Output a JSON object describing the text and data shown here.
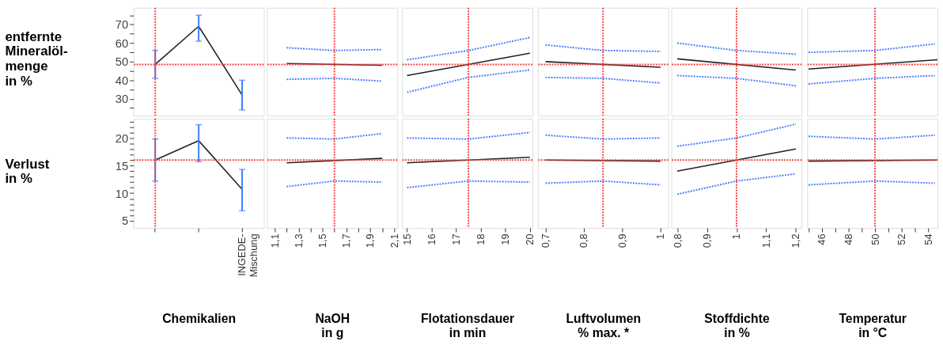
{
  "chart_data": [
    {
      "type": "line",
      "categories": [
        null,
        null,
        null
      ],
      "ylabel": "entfernte\nMineralöl-\nmenge\nin %",
      "ylim": [
        21,
        79
      ],
      "yticks": [
        {
          "value": 25,
          "label": null
        },
        30,
        {
          "value": 35,
          "label": null
        },
        40,
        {
          "value": 45,
          "label": null
        },
        50,
        {
          "value": 55,
          "label": null
        },
        60,
        {
          "value": 65,
          "label": null
        },
        70,
        {
          "value": 75,
          "label": null
        }
      ],
      "tick_labels": "y",
      "grid": false,
      "series": [
        {
          "color": "#222222",
          "line_style": "solid",
          "values": [
            48.5,
            69,
            32
          ],
          "errors": [
            [
              41,
              56
            ],
            [
              61,
              75
            ],
            [
              24,
              40
            ]
          ]
        }
      ],
      "ref_lines": [
        {
          "axis": "y",
          "value": 48.5,
          "color": "#ff4040",
          "line_style": "dotted"
        }
      ]
    },
    {
      "type": "line",
      "xlim": [
        1.035,
        2.127
      ],
      "ylim": [
        21,
        79
      ],
      "tick_labels": false,
      "grid": false,
      "series": [
        {
          "color": "#222222",
          "line_style": "solid",
          "x": [
            1.2,
            2.0
          ],
          "values": [
            49,
            48
          ]
        },
        {
          "color": "#4a7dff",
          "line_style": "dotted",
          "x": [
            1.2,
            1.6,
            2.0
          ],
          "values": [
            57.5,
            56,
            56.5
          ]
        },
        {
          "color": "#4a7dff",
          "line_style": "dotted",
          "x": [
            1.2,
            1.6,
            2.0
          ],
          "values": [
            40.5,
            41,
            39.5
          ]
        }
      ],
      "ref_lines": [
        {
          "axis": "x",
          "value": 1.6,
          "color": "#ff4040",
          "line_style": "dotted"
        },
        {
          "axis": "y",
          "value": 48.5,
          "color": "#ff4040",
          "line_style": "dotted"
        }
      ]
    },
    {
      "type": "line",
      "xlim": [
        14.8,
        20.1
      ],
      "ylim": [
        21,
        79
      ],
      "tick_labels": false,
      "grid": false,
      "series": [
        {
          "color": "#222222",
          "line_style": "solid",
          "x": [
            15,
            20
          ],
          "values": [
            42.5,
            54.5
          ]
        },
        {
          "color": "#4a7dff",
          "line_style": "dotted",
          "x": [
            15,
            17.5,
            20
          ],
          "values": [
            51,
            56,
            63
          ]
        },
        {
          "color": "#4a7dff",
          "line_style": "dotted",
          "x": [
            15,
            17.5,
            20
          ],
          "values": [
            33.5,
            41.5,
            45.5
          ]
        }
      ],
      "ref_lines": [
        {
          "axis": "x",
          "value": 17.5,
          "color": "#ff4040",
          "line_style": "dotted"
        },
        {
          "axis": "y",
          "value": 48.5,
          "color": "#ff4040",
          "line_style": "dotted"
        }
      ]
    },
    {
      "type": "line",
      "xlim": [
        0.68,
        1.02
      ],
      "ylim": [
        21,
        79
      ],
      "tick_labels": false,
      "grid": false,
      "series": [
        {
          "color": "#222222",
          "line_style": "solid",
          "x": [
            0.7,
            1
          ],
          "values": [
            50,
            47
          ]
        },
        {
          "color": "#4a7dff",
          "line_style": "dotted",
          "x": [
            0.7,
            0.85,
            1
          ],
          "values": [
            59,
            56,
            55.5
          ]
        },
        {
          "color": "#4a7dff",
          "line_style": "dotted",
          "x": [
            0.7,
            0.85,
            1
          ],
          "values": [
            41.5,
            41,
            38.5
          ]
        }
      ],
      "ref_lines": [
        {
          "axis": "x",
          "value": 0.85,
          "color": "#ff4040",
          "line_style": "dotted"
        },
        {
          "axis": "y",
          "value": 48.5,
          "color": "#ff4040",
          "line_style": "dotted"
        }
      ]
    },
    {
      "type": "line",
      "xlim": [
        0.78,
        1.22
      ],
      "ylim": [
        21,
        79
      ],
      "tick_labels": false,
      "grid": false,
      "series": [
        {
          "color": "#222222",
          "line_style": "solid",
          "x": [
            0.8,
            1.2
          ],
          "values": [
            51.5,
            45.5
          ]
        },
        {
          "color": "#4a7dff",
          "line_style": "dotted",
          "x": [
            0.8,
            1,
            1.2
          ],
          "values": [
            60,
            56,
            54
          ]
        },
        {
          "color": "#4a7dff",
          "line_style": "dotted",
          "x": [
            0.8,
            1,
            1.2
          ],
          "values": [
            42.5,
            41,
            37
          ]
        }
      ],
      "ref_lines": [
        {
          "axis": "x",
          "value": 1,
          "color": "#ff4040",
          "line_style": "dotted"
        },
        {
          "axis": "y",
          "value": 48.5,
          "color": "#ff4040",
          "line_style": "dotted"
        }
      ]
    },
    {
      "type": "line",
      "xlim": [
        44.9,
        54.7
      ],
      "ylim": [
        21,
        79
      ],
      "tick_labels": false,
      "grid": false,
      "series": [
        {
          "color": "#222222",
          "line_style": "solid",
          "x": [
            45,
            54.7
          ],
          "values": [
            46,
            51
          ]
        },
        {
          "color": "#4a7dff",
          "line_style": "dotted",
          "x": [
            45,
            50,
            54.5
          ],
          "values": [
            55,
            56,
            59.5
          ]
        },
        {
          "color": "#4a7dff",
          "line_style": "dotted",
          "x": [
            45,
            50,
            54.5
          ],
          "values": [
            38,
            41,
            42.5
          ]
        }
      ],
      "ref_lines": [
        {
          "axis": "x",
          "value": 50,
          "color": "#ff4040",
          "line_style": "dotted"
        },
        {
          "axis": "y",
          "value": 48.5,
          "color": "#ff4040",
          "line_style": "dotted"
        }
      ]
    },
    {
      "type": "line",
      "categories": [
        null,
        null,
        "INGEDE-Mischung"
      ],
      "ylabel": "Verlust\nin %",
      "xlabel": "Chemikalien",
      "ylim": [
        3.7,
        23.5
      ],
      "yticks": [
        5,
        {
          "value": 6,
          "label": null
        },
        {
          "value": 7,
          "label": null
        },
        {
          "value": 8,
          "label": null
        },
        {
          "value": 9,
          "label": null
        },
        10,
        {
          "value": 11,
          "label": null
        },
        {
          "value": 12,
          "label": null
        },
        {
          "value": 13,
          "label": null
        },
        {
          "value": 14,
          "label": null
        },
        15,
        {
          "value": 16,
          "label": null
        },
        {
          "value": 17,
          "label": null
        },
        {
          "value": 18,
          "label": null
        },
        {
          "value": 19,
          "label": null
        },
        20,
        {
          "value": 21,
          "label": null
        },
        {
          "value": 22,
          "label": null
        },
        {
          "value": 23,
          "label": null
        }
      ],
      "grid": false,
      "series": [
        {
          "color": "#222222",
          "line_style": "solid",
          "values": [
            16,
            19.5,
            10.7
          ],
          "errors": [
            [
              12.2,
              19.8
            ],
            [
              15.7,
              22.4
            ],
            [
              6.8,
              14.3
            ]
          ]
        }
      ],
      "ref_lines": [
        {
          "axis": "y",
          "value": 16,
          "color": "#ff4040",
          "line_style": "dotted"
        }
      ]
    },
    {
      "type": "line",
      "xlabel": "NaOH\nin g",
      "xlim": [
        1.035,
        2.127
      ],
      "xticks": [
        {
          "value": 1.1,
          "label": "1,1"
        },
        {
          "value": 1.2,
          "label": null
        },
        {
          "value": 1.3,
          "label": "1,3"
        },
        {
          "value": 1.4,
          "label": null
        },
        {
          "value": 1.5,
          "label": "1,5"
        },
        {
          "value": 1.6,
          "label": null
        },
        {
          "value": 1.7,
          "label": "1,7"
        },
        {
          "value": 1.8,
          "label": null
        },
        {
          "value": 1.9,
          "label": "1,9"
        },
        {
          "value": 2,
          "label": null
        },
        {
          "value": 2.1,
          "label": "2,1"
        }
      ],
      "ylim": [
        3.7,
        23.5
      ],
      "tick_labels": "x",
      "grid": false,
      "series": [
        {
          "color": "#222222",
          "line_style": "solid",
          "x": [
            1.2,
            2.0
          ],
          "values": [
            15.5,
            16.3
          ]
        },
        {
          "color": "#4a7dff",
          "line_style": "dotted",
          "x": [
            1.2,
            1.6,
            2.0
          ],
          "values": [
            20,
            19.8,
            20.8
          ]
        },
        {
          "color": "#4a7dff",
          "line_style": "dotted",
          "x": [
            1.2,
            1.6,
            2.0
          ],
          "values": [
            11.2,
            12.2,
            12
          ]
        }
      ],
      "ref_lines": [
        {
          "axis": "x",
          "value": 1.6,
          "color": "#ff4040",
          "line_style": "dotted"
        },
        {
          "axis": "y",
          "value": 16,
          "color": "#ff4040",
          "line_style": "dotted"
        }
      ]
    },
    {
      "type": "line",
      "xlabel": "Flotationsdauer\nin min",
      "xlim": [
        14.8,
        20.1
      ],
      "xticks": [
        15,
        16,
        17,
        18,
        19,
        20
      ],
      "ylim": [
        3.7,
        23.5
      ],
      "tick_labels": "x",
      "grid": false,
      "series": [
        {
          "color": "#222222",
          "line_style": "solid",
          "x": [
            15,
            20
          ],
          "values": [
            15.5,
            16.5
          ]
        },
        {
          "color": "#4a7dff",
          "line_style": "dotted",
          "x": [
            15,
            17.5,
            20
          ],
          "values": [
            20,
            19.8,
            21
          ]
        },
        {
          "color": "#4a7dff",
          "line_style": "dotted",
          "x": [
            15,
            17.5,
            20
          ],
          "values": [
            11,
            12.2,
            12
          ]
        }
      ],
      "ref_lines": [
        {
          "axis": "x",
          "value": 17.5,
          "color": "#ff4040",
          "line_style": "dotted"
        },
        {
          "axis": "y",
          "value": 16,
          "color": "#ff4040",
          "line_style": "dotted"
        }
      ]
    },
    {
      "type": "line",
      "xlabel": "Luftvolumen\n% max.  *",
      "xlim": [
        0.68,
        1.02
      ],
      "xticks": [
        {
          "value": 0.7,
          "label": "0,7"
        },
        {
          "value": 0.8,
          "label": "0,8"
        },
        {
          "value": 0.9,
          "label": "0,9"
        },
        1
      ],
      "ylim": [
        3.7,
        23.5
      ],
      "tick_labels": "x",
      "grid": false,
      "series": [
        {
          "color": "#222222",
          "line_style": "solid",
          "x": [
            0.7,
            1
          ],
          "values": [
            16,
            15.8
          ]
        },
        {
          "color": "#4a7dff",
          "line_style": "dotted",
          "x": [
            0.7,
            0.85,
            1
          ],
          "values": [
            20.5,
            19.8,
            20
          ]
        },
        {
          "color": "#4a7dff",
          "line_style": "dotted",
          "x": [
            0.7,
            0.85,
            1
          ],
          "values": [
            11.8,
            12.2,
            11.5
          ]
        }
      ],
      "ref_lines": [
        {
          "axis": "x",
          "value": 0.85,
          "color": "#ff4040",
          "line_style": "dotted"
        },
        {
          "axis": "y",
          "value": 16,
          "color": "#ff4040",
          "line_style": "dotted"
        }
      ]
    },
    {
      "type": "line",
      "xlabel": "Stoffdichte\nin %",
      "xlim": [
        0.78,
        1.22
      ],
      "xticks": [
        {
          "value": 0.8,
          "label": "0,8"
        },
        {
          "value": 0.9,
          "label": "0,9"
        },
        1,
        {
          "value": 1.1,
          "label": "1,1"
        },
        {
          "value": 1.2,
          "label": "1,2"
        }
      ],
      "ylim": [
        3.7,
        23.5
      ],
      "tick_labels": "x",
      "grid": false,
      "series": [
        {
          "color": "#222222",
          "line_style": "solid",
          "x": [
            0.8,
            1.2
          ],
          "values": [
            14,
            18
          ]
        },
        {
          "color": "#4a7dff",
          "line_style": "dotted",
          "x": [
            0.8,
            1,
            1.2
          ],
          "values": [
            18.5,
            20,
            22.5
          ]
        },
        {
          "color": "#4a7dff",
          "line_style": "dotted",
          "x": [
            0.8,
            1,
            1.2
          ],
          "values": [
            9.8,
            12.2,
            13.5
          ]
        }
      ],
      "ref_lines": [
        {
          "axis": "x",
          "value": 1,
          "color": "#ff4040",
          "line_style": "dotted"
        },
        {
          "axis": "y",
          "value": 16,
          "color": "#ff4040",
          "line_style": "dotted"
        }
      ]
    },
    {
      "type": "line",
      "xlabel": "Temperatur\nin °C",
      "xlim": [
        44.9,
        54.7
      ],
      "xticks": [
        {
          "value": 45,
          "label": null
        },
        46,
        {
          "value": 47,
          "label": null
        },
        48,
        {
          "value": 49,
          "label": null
        },
        50,
        {
          "value": 51,
          "label": null
        },
        52,
        {
          "value": 53,
          "label": null
        },
        54
      ],
      "ylim": [
        3.7,
        23.5
      ],
      "tick_labels": "x",
      "grid": false,
      "series": [
        {
          "color": "#222222",
          "line_style": "solid",
          "x": [
            45,
            54.7
          ],
          "values": [
            15.8,
            16
          ]
        },
        {
          "color": "#4a7dff",
          "line_style": "dotted",
          "x": [
            45,
            50,
            54.5
          ],
          "values": [
            20.3,
            19.8,
            20.5
          ]
        },
        {
          "color": "#4a7dff",
          "line_style": "dotted",
          "x": [
            45,
            50,
            54.5
          ],
          "values": [
            11.5,
            12.2,
            11.8
          ]
        }
      ],
      "ref_lines": [
        {
          "axis": "x",
          "value": 50,
          "color": "#ff4040",
          "line_style": "dotted"
        },
        {
          "axis": "y",
          "value": 16,
          "color": "#ff4040",
          "line_style": "dotted"
        }
      ]
    }
  ]
}
